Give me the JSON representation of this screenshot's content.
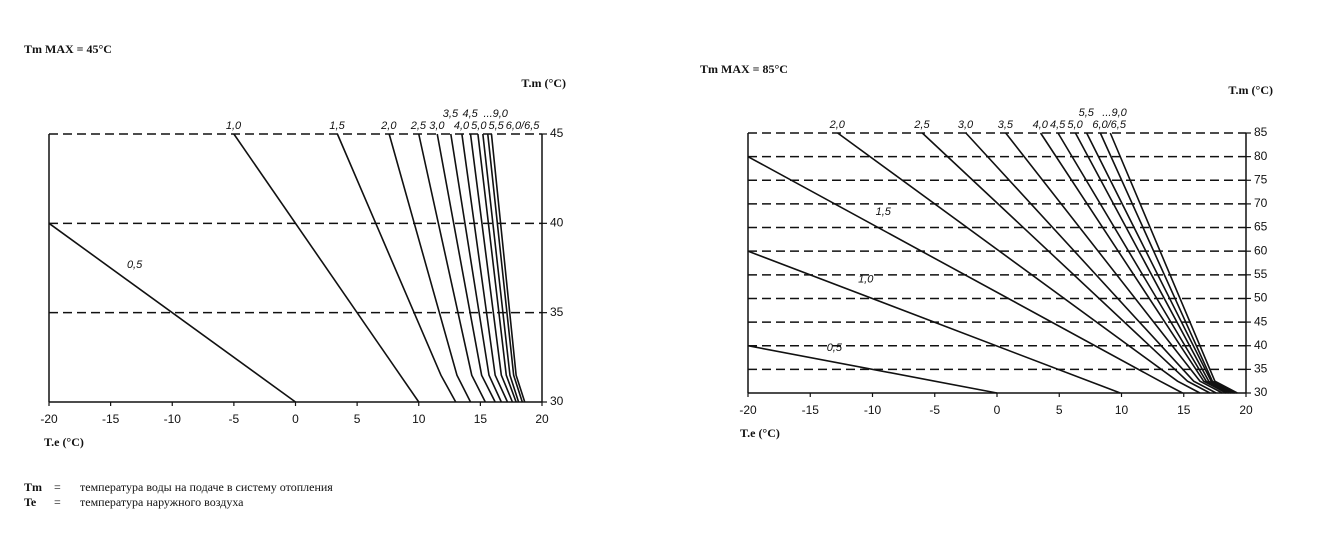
{
  "chart_data": [
    {
      "type": "line",
      "title": "Tm MAX = 45°C",
      "ylabel": "T.m (°C)",
      "xlabel": "T.e (°C)",
      "xlim": [
        -20,
        20
      ],
      "xticks": [
        -20,
        -15,
        -10,
        -5,
        0,
        5,
        10,
        15,
        20
      ],
      "ylim": [
        30,
        45
      ],
      "yticks": [
        30,
        35,
        40,
        45
      ],
      "grid": true,
      "color": "#111111",
      "series": [
        {
          "name": "0,5",
          "x": [
            -20,
            0
          ],
          "values": [
            40,
            30
          ]
        },
        {
          "name": "1,0",
          "x": [
            -5,
            10
          ],
          "values": [
            45,
            30
          ]
        },
        {
          "name": "1,5",
          "x": [
            3.4,
            11.8,
            13
          ],
          "values": [
            45,
            31.5,
            30
          ]
        },
        {
          "name": "2,0",
          "x": [
            7.6,
            13.1,
            14.2
          ],
          "values": [
            45,
            31.5,
            30
          ]
        },
        {
          "name": "2,5",
          "x": [
            10,
            14.3,
            15.4
          ],
          "values": [
            45,
            31.5,
            30
          ]
        },
        {
          "name": "3,0",
          "x": [
            11.5,
            15.1,
            16.2
          ],
          "values": [
            45,
            31.5,
            30
          ]
        },
        {
          "name": "3,5",
          "x": [
            12.6,
            15.7,
            16.7
          ],
          "values": [
            45,
            31.5,
            30
          ]
        },
        {
          "name": "4,0",
          "x": [
            13.5,
            16.2,
            17.2
          ],
          "values": [
            45,
            31.5,
            30
          ]
        },
        {
          "name": "4,5",
          "x": [
            14.2,
            16.7,
            17.6
          ],
          "values": [
            45,
            31.5,
            30
          ]
        },
        {
          "name": "5,0",
          "x": [
            14.8,
            17.1,
            17.9
          ],
          "values": [
            45,
            31.5,
            30
          ]
        },
        {
          "name": "5,5",
          "x": [
            15.2,
            17.4,
            18.1
          ],
          "values": [
            45,
            31.5,
            30
          ]
        },
        {
          "name": "6,0/6,5",
          "x": [
            15.6,
            17.7,
            18.4
          ],
          "values": [
            45,
            31.5,
            30
          ]
        },
        {
          "name": "...9,0",
          "x": [
            15.9,
            17.9,
            18.6
          ],
          "values": [
            45,
            31.5,
            30
          ]
        }
      ]
    },
    {
      "type": "line",
      "title": "Tm MAX = 85°C",
      "ylabel": "T.m (°C)",
      "xlabel": "T.e (°C)",
      "xlim": [
        -20,
        20
      ],
      "xticks": [
        -20,
        -15,
        -10,
        -5,
        0,
        5,
        10,
        15,
        20
      ],
      "ylim": [
        30,
        85
      ],
      "yticks": [
        30,
        35,
        40,
        45,
        50,
        55,
        60,
        65,
        70,
        75,
        80,
        85
      ],
      "grid": true,
      "color": "#111111",
      "series": [
        {
          "name": "0,5",
          "x": [
            -20,
            0
          ],
          "values": [
            40,
            30
          ]
        },
        {
          "name": "1,0",
          "x": [
            -20,
            8.4,
            9.9
          ],
          "values": [
            60,
            31.5,
            30
          ]
        },
        {
          "name": "1,5",
          "x": [
            -20,
            13.1,
            14.9
          ],
          "values": [
            80,
            32.5,
            30
          ]
        },
        {
          "name": "2,0",
          "x": [
            -12.8,
            14.5,
            16.3
          ],
          "values": [
            85,
            32.5,
            30
          ]
        },
        {
          "name": "2,5",
          "x": [
            -6,
            15.3,
            17.1
          ],
          "values": [
            85,
            32.5,
            30
          ]
        },
        {
          "name": "3,0",
          "x": [
            -2.5,
            15.8,
            17.6
          ],
          "values": [
            85,
            32.5,
            30
          ]
        },
        {
          "name": "3,5",
          "x": [
            0.7,
            16.3,
            18.1
          ],
          "values": [
            85,
            32.5,
            30
          ]
        },
        {
          "name": "4,0",
          "x": [
            3.5,
            16.6,
            18.4
          ],
          "values": [
            85,
            32.5,
            30
          ]
        },
        {
          "name": "4,5",
          "x": [
            4.9,
            16.8,
            18.6
          ],
          "values": [
            85,
            32.5,
            30
          ]
        },
        {
          "name": "5,0",
          "x": [
            6.3,
            17,
            18.8
          ],
          "values": [
            85,
            32.5,
            30
          ]
        },
        {
          "name": "5,5",
          "x": [
            7.2,
            17.2,
            19
          ],
          "values": [
            85,
            32.5,
            30
          ]
        },
        {
          "name": "6,0/6,5",
          "x": [
            8.3,
            17.3,
            19.1
          ],
          "values": [
            85,
            32.5,
            30
          ]
        },
        {
          "name": "...9,0",
          "x": [
            9.1,
            17.5,
            19.3
          ],
          "values": [
            85,
            32.5,
            30
          ]
        }
      ]
    }
  ],
  "notes": [
    {
      "symbol": "Tm",
      "sign": "=",
      "text": "температура воды на подаче в систему отопления"
    },
    {
      "symbol": "Te",
      "sign": "=",
      "text": "температура наружного воздуха"
    }
  ]
}
